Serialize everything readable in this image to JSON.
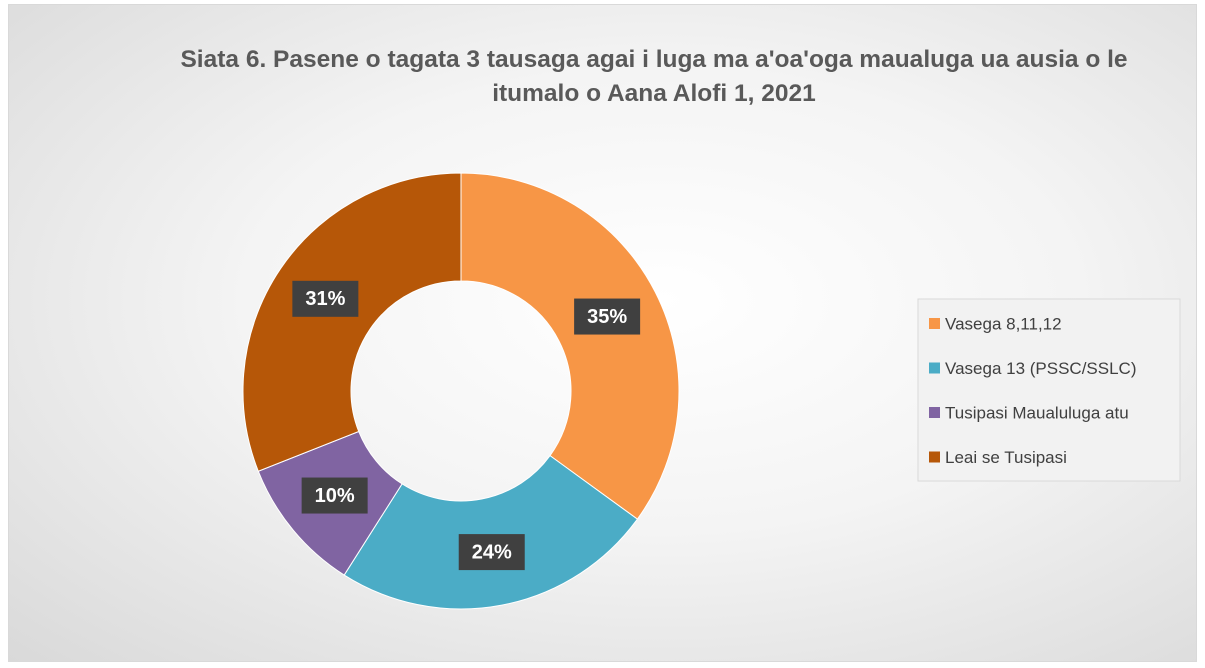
{
  "chart_data": {
    "type": "pie",
    "donut": true,
    "title": "Siata 6. Pasene o tagata 3 tausaga agai i luga ma a'oa'oga maualuga ua ausia o le itumalo o Aana Alofi 1, 2021",
    "categories": [
      "Vasega 8,11,12",
      "Vasega 13 (PSSC/SSLC)",
      "Tusipasi Maualuluga atu",
      "Leai se Tusipasi"
    ],
    "values": [
      35,
      24,
      10,
      31
    ],
    "value_labels": [
      "35%",
      "24%",
      "10%",
      "31%"
    ],
    "colors": [
      "#f79646",
      "#4bacc6",
      "#8064a2",
      "#b65708"
    ],
    "legend": "right"
  }
}
